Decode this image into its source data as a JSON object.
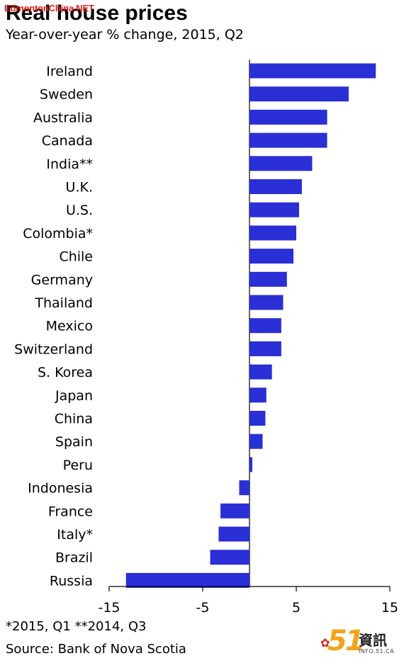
{
  "watermark": "EdmontonChina.NET",
  "logo": {
    "number": "51",
    "cjk": "資訊",
    "url": "INFO.51.CA"
  },
  "chart_data": {
    "type": "bar",
    "orientation": "horizontal",
    "title": "Real house prices",
    "subtitle": "Year-over-year % change, 2015, Q2",
    "categories": [
      "Ireland",
      "Sweden",
      "Australia",
      "Canada",
      "India**",
      "U.K.",
      "U.S.",
      "Colombia*",
      "Chile",
      "Germany",
      "Thailand",
      "Mexico",
      "Switzerland",
      "S. Korea",
      "Japan",
      "China",
      "Spain",
      "Peru",
      "Indonesia",
      "France",
      "Italy*",
      "Brazil",
      "Russia"
    ],
    "values": [
      13.5,
      10.6,
      8.3,
      8.3,
      6.7,
      5.6,
      5.3,
      5.0,
      4.7,
      4.0,
      3.6,
      3.4,
      3.4,
      2.4,
      1.8,
      1.7,
      1.4,
      0.3,
      -1.1,
      -3.1,
      -3.3,
      -4.2,
      -13.2
    ],
    "xlim": [
      -15,
      15
    ],
    "xticks": [
      -15,
      -5,
      5,
      15
    ],
    "bar_color": "#2a2fd6",
    "grid": false,
    "footnote": "*2015, Q1 **2014, Q3",
    "source": "Source: Bank of Nova Scotia"
  }
}
